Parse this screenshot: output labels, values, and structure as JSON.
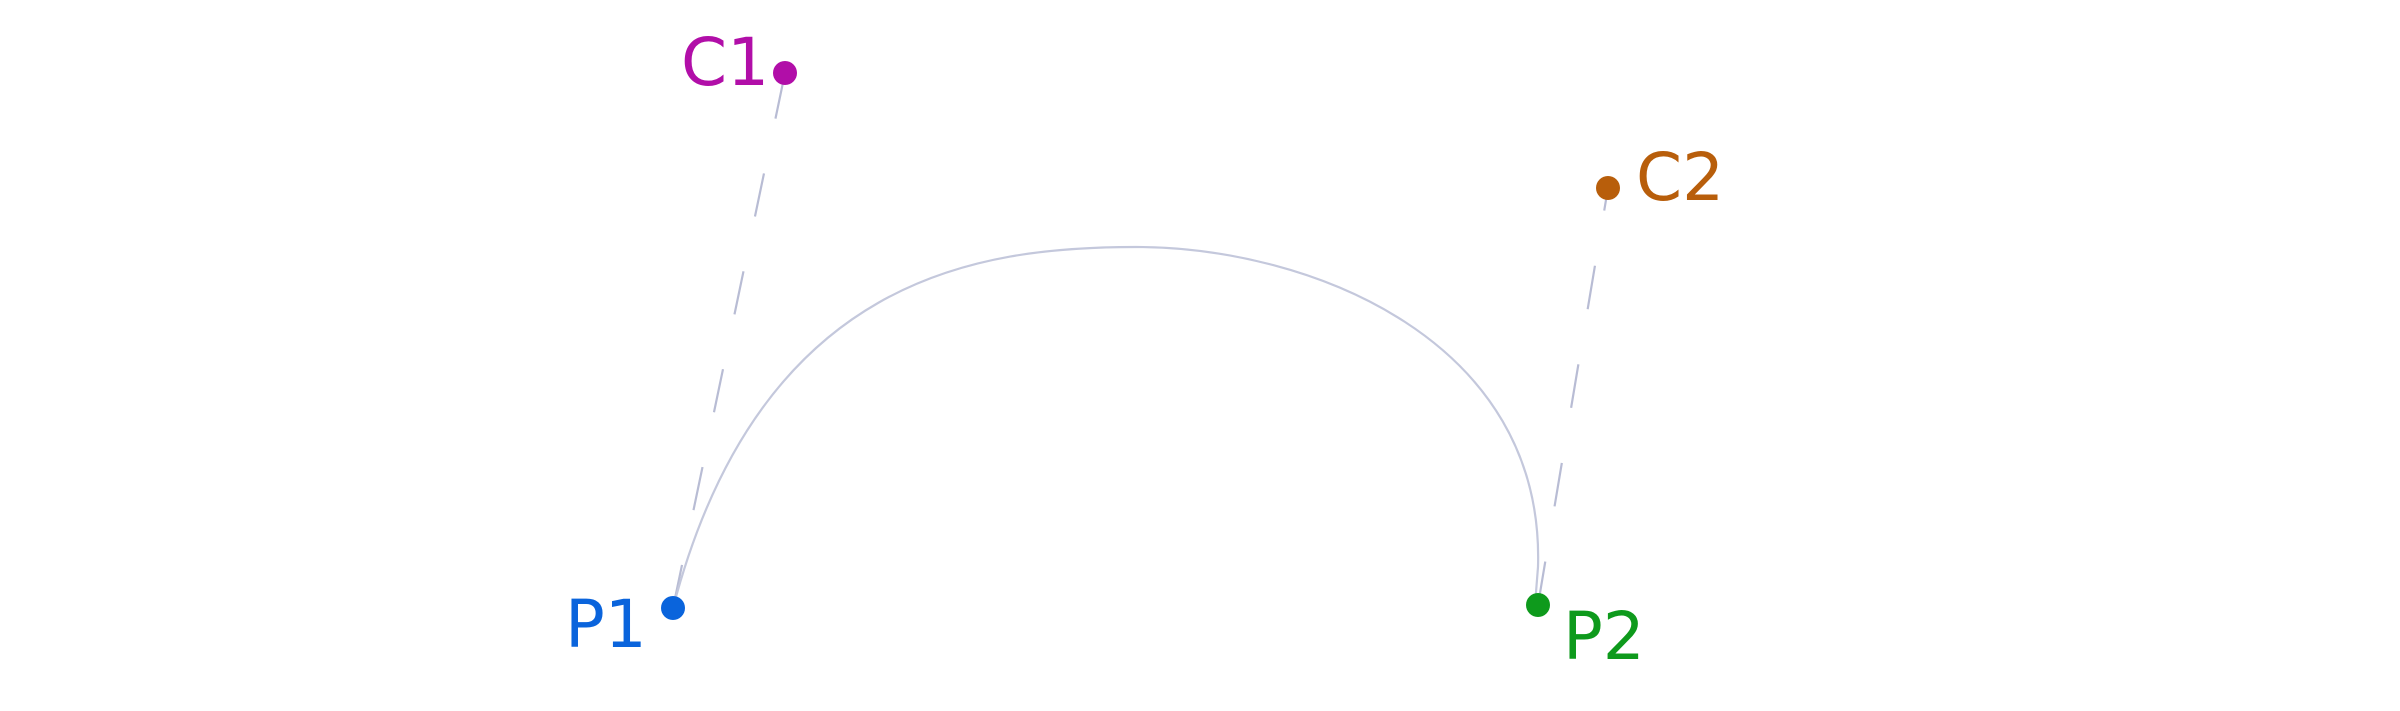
{
  "diagram": {
    "type": "cubic-bezier",
    "points": {
      "p1": {
        "label": "P1",
        "color": "#0a64dc"
      },
      "c1": {
        "label": "C1",
        "color": "#b10ea8"
      },
      "c2": {
        "label": "C2",
        "color": "#b85e0b"
      },
      "p2": {
        "label": "P2",
        "color": "#0e9a1c"
      }
    },
    "curve_color": "#c4c8dc",
    "handle_line_color": "#b8bcd4",
    "handle_line_style": "dashed"
  }
}
